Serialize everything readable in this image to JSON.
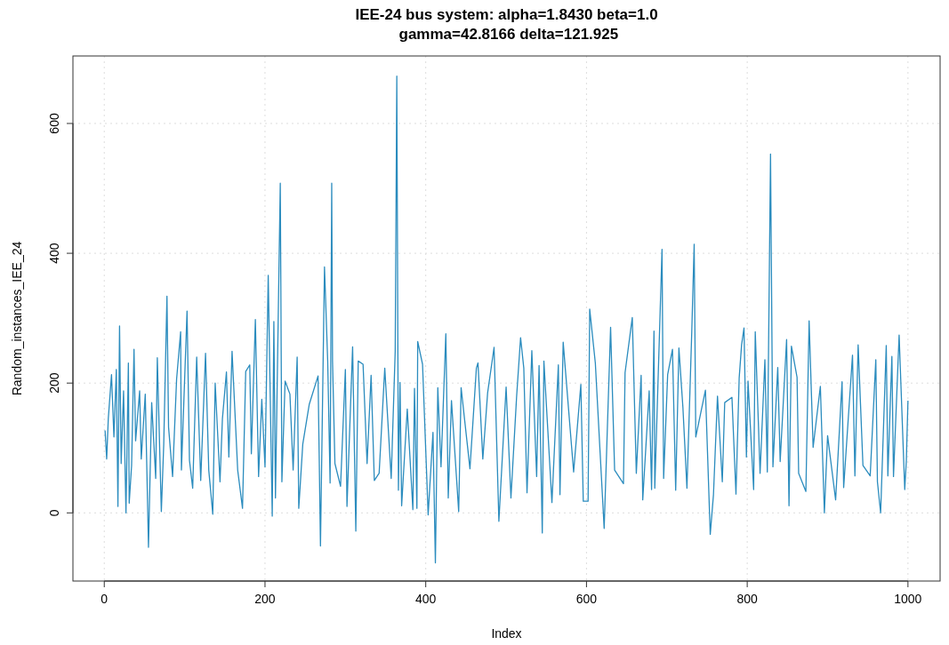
{
  "chart_data": {
    "type": "line",
    "title": "IEE-24 bus system: alpha=1.8430 beta=1.0\n gamma=42.8166 delta=121.925",
    "xlabel": "Index",
    "ylabel": "Random_instances_IEE_24",
    "xlim": [
      -39,
      1040
    ],
    "ylim": [
      -105,
      704
    ],
    "xticks": [
      0,
      200,
      400,
      600,
      800,
      1000
    ],
    "yticks": [
      0,
      200,
      400,
      600
    ],
    "grid": true,
    "marker": "none",
    "line_style": "solid",
    "series": [
      {
        "color": "#2b8cbe",
        "x": [
          1,
          3,
          5,
          9,
          12,
          15,
          17,
          19,
          21,
          24,
          27,
          30,
          31,
          34,
          37,
          39,
          44,
          46,
          51,
          55,
          59,
          64,
          66,
          71,
          74,
          78,
          80,
          85,
          90,
          95,
          96,
          103,
          106,
          110,
          115,
          120,
          126,
          130,
          135,
          138,
          144,
          147,
          152,
          155,
          159,
          166,
          172,
          176,
          181,
          183,
          188,
          192,
          196,
          200,
          204,
          209,
          211,
          213,
          219,
          221,
          225,
          231,
          235,
          240,
          242,
          247,
          255,
          266,
          269,
          274,
          278,
          281,
          283,
          284,
          287,
          294,
          300,
          302,
          309,
          313,
          316,
          322,
          327,
          332,
          336,
          342,
          349,
          357,
          362,
          364,
          366,
          368,
          370,
          377,
          384,
          386,
          389,
          390,
          396,
          403,
          409,
          412,
          415,
          419,
          425,
          428,
          432,
          441,
          444,
          455,
          463,
          465,
          471,
          477,
          485,
          491,
          500,
          506,
          513,
          518,
          522,
          526,
          532,
          538,
          541,
          545,
          547,
          557,
          565,
          567,
          571,
          584,
          593,
          596,
          602,
          604,
          611,
          622,
          630,
          635,
          646,
          648,
          657,
          662,
          668,
          670,
          678,
          681,
          684,
          685,
          694,
          696,
          701,
          707,
          711,
          715,
          720,
          725,
          731,
          734,
          736,
          748,
          754,
          758,
          763,
          769,
          772,
          781,
          786,
          790,
          793,
          796,
          799,
          801,
          808,
          810,
          816,
          822,
          825,
          829,
          832,
          838,
          841,
          849,
          852,
          855,
          862,
          864,
          873,
          877,
          882,
          891,
          896,
          900,
          910,
          918,
          920,
          931,
          934,
          938,
          944,
          953,
          960,
          962,
          966,
          973,
          975,
          980,
          982,
          989,
          991,
          996,
          998,
          1000
        ],
        "values": [
          127,
          83,
          145,
          213,
          117,
          221,
          10,
          288,
          76,
          188,
          0,
          231,
          15,
          73,
          252,
          111,
          188,
          83,
          183,
          -53,
          170,
          53,
          239,
          2,
          106,
          334,
          132,
          56,
          206,
          279,
          66,
          311,
          81,
          38,
          240,
          50,
          246,
          66,
          -2,
          200,
          48,
          145,
          217,
          86,
          249,
          66,
          7,
          218,
          228,
          91,
          298,
          56,
          175,
          71,
          366,
          -5,
          295,
          23,
          508,
          48,
          203,
          183,
          66,
          240,
          7,
          106,
          167,
          211,
          -51,
          379,
          234,
          46,
          508,
          234,
          76,
          41,
          221,
          10,
          256,
          -28,
          234,
          229,
          76,
          212,
          50,
          61,
          223,
          53,
          249,
          673,
          35,
          201,
          11,
          160,
          5,
          192,
          7,
          264,
          229,
          -3,
          124,
          -77,
          193,
          71,
          276,
          23,
          173,
          2,
          193,
          68,
          223,
          231,
          83,
          185,
          255,
          -13,
          194,
          23,
          178,
          270,
          223,
          31,
          250,
          56,
          227,
          -31,
          234,
          16,
          228,
          28,
          263,
          63,
          198,
          18,
          18,
          314,
          231,
          -24,
          286,
          66,
          45,
          216,
          301,
          61,
          212,
          20,
          188,
          36,
          280,
          38,
          406,
          53,
          213,
          252,
          35,
          254,
          162,
          38,
          279,
          414,
          117,
          189,
          -33,
          28,
          180,
          48,
          170,
          178,
          29,
          208,
          259,
          285,
          86,
          203,
          36,
          279,
          61,
          236,
          63,
          553,
          71,
          224,
          79,
          267,
          11,
          257,
          209,
          61,
          33,
          296,
          101,
          195,
          0,
          119,
          20,
          202,
          39,
          243,
          57,
          259,
          73,
          57,
          236,
          48,
          0,
          258,
          57,
          241,
          56,
          274,
          206,
          36,
          81,
          173
        ]
      }
    ]
  }
}
